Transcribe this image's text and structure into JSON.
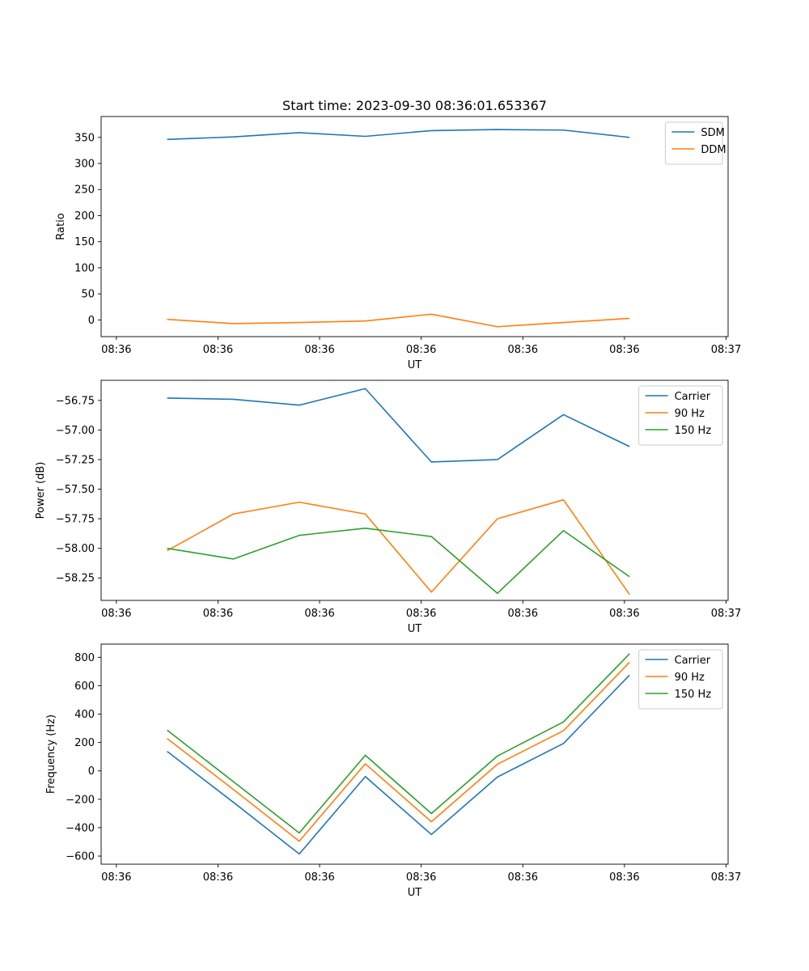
{
  "figure_title": "Start time: 2023-09-30 08:36:01.653367",
  "chart_data": [
    {
      "type": "line",
      "title": "Start time: 2023-09-30 08:36:01.653367",
      "xlabel": "UT",
      "ylabel": "Ratio",
      "x_tick_labels": [
        "08:36",
        "08:36",
        "08:36",
        "08:36",
        "08:36",
        "08:36",
        "08:37"
      ],
      "x_ticks": [
        0,
        1,
        2,
        3,
        4,
        5,
        6
      ],
      "xlim": [
        -0.15,
        6.02
      ],
      "x": [
        0.5,
        1.15,
        1.8,
        2.45,
        3.1,
        3.75,
        4.4,
        5.05
      ],
      "ylim": [
        -32,
        390
      ],
      "y_ticks": [
        0,
        50,
        100,
        150,
        200,
        250,
        300,
        350
      ],
      "y_tick_labels": [
        "0",
        "50",
        "100",
        "150",
        "200",
        "250",
        "300",
        "350"
      ],
      "legend_position": "top-right",
      "series": [
        {
          "name": "SDM",
          "color": "#1f77b4",
          "values": [
            346,
            351,
            359,
            352,
            363,
            365,
            364,
            350
          ]
        },
        {
          "name": "DDM",
          "color": "#ff7f0e",
          "values": [
            1,
            -7,
            -5,
            -2,
            11,
            -13,
            -5,
            3
          ]
        }
      ]
    },
    {
      "type": "line",
      "title": "",
      "xlabel": "UT",
      "ylabel": "Power (dB)",
      "x_tick_labels": [
        "08:36",
        "08:36",
        "08:36",
        "08:36",
        "08:36",
        "08:36",
        "08:37"
      ],
      "x_ticks": [
        0,
        1,
        2,
        3,
        4,
        5,
        6
      ],
      "xlim": [
        -0.15,
        6.02
      ],
      "x": [
        0.5,
        1.15,
        1.8,
        2.45,
        3.1,
        3.75,
        4.4,
        5.05
      ],
      "ylim": [
        -58.44,
        -56.58
      ],
      "y_ticks": [
        -58.25,
        -58.0,
        -57.75,
        -57.5,
        -57.25,
        -57.0,
        -56.75
      ],
      "y_tick_labels": [
        "−58.25",
        "−58.00",
        "−57.75",
        "−57.50",
        "−57.25",
        "−57.00",
        "−56.75"
      ],
      "legend_position": "top-right",
      "series": [
        {
          "name": "Carrier",
          "color": "#1f77b4",
          "values": [
            -56.73,
            -56.74,
            -56.79,
            -56.65,
            -57.27,
            -57.25,
            -56.87,
            -57.14
          ]
        },
        {
          "name": "90 Hz",
          "color": "#ff7f0e",
          "values": [
            -58.02,
            -57.71,
            -57.61,
            -57.71,
            -58.37,
            -57.75,
            -57.59,
            -58.39
          ]
        },
        {
          "name": "150 Hz",
          "color": "#2ca02c",
          "values": [
            -58.0,
            -58.09,
            -57.89,
            -57.83,
            -57.9,
            -58.38,
            -57.85,
            -58.24
          ]
        }
      ]
    },
    {
      "type": "line",
      "title": "",
      "xlabel": "UT",
      "ylabel": "Frequency (Hz)",
      "x_tick_labels": [
        "08:36",
        "08:36",
        "08:36",
        "08:36",
        "08:36",
        "08:36",
        "08:37"
      ],
      "x_ticks": [
        0,
        1,
        2,
        3,
        4,
        5,
        6
      ],
      "xlim": [
        -0.15,
        6.02
      ],
      "x": [
        0.5,
        1.15,
        1.8,
        2.45,
        3.1,
        3.75,
        4.4,
        5.05
      ],
      "ylim": [
        -657,
        893
      ],
      "y_ticks": [
        -600,
        -400,
        -200,
        0,
        200,
        400,
        600,
        800
      ],
      "y_tick_labels": [
        "−600",
        "−400",
        "−200",
        "0",
        "200",
        "400",
        "600",
        "800"
      ],
      "legend_position": "top-right",
      "series": [
        {
          "name": "Carrier",
          "color": "#1f77b4",
          "values": [
            137,
            -220,
            -585,
            -40,
            -448,
            -43,
            193,
            675
          ]
        },
        {
          "name": "90 Hz",
          "color": "#ff7f0e",
          "values": [
            228,
            -130,
            -495,
            50,
            -358,
            47,
            283,
            765
          ]
        },
        {
          "name": "150 Hz",
          "color": "#2ca02c",
          "values": [
            287,
            -75,
            -437,
            110,
            -300,
            105,
            345,
            825
          ]
        }
      ]
    }
  ]
}
